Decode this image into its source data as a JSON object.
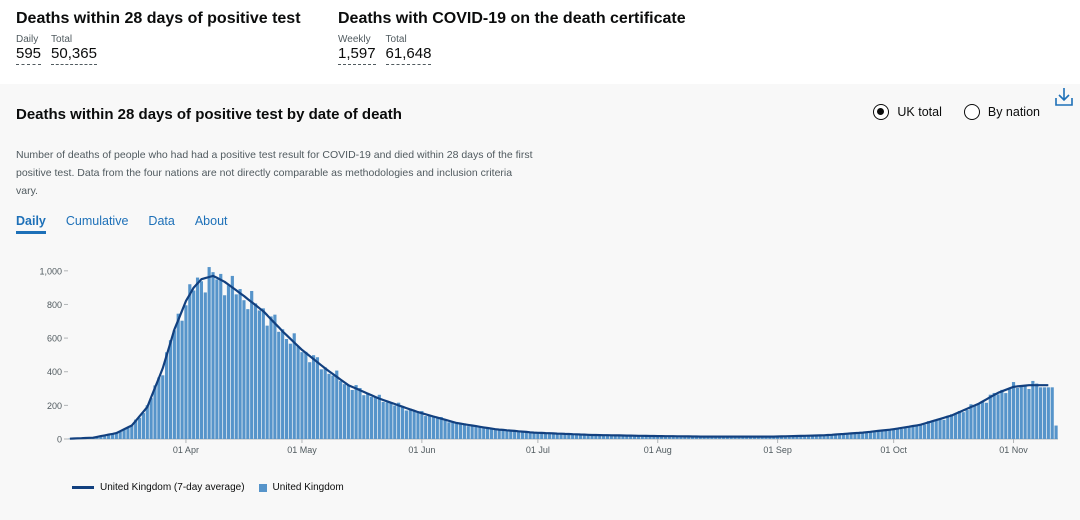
{
  "headline": {
    "block1": {
      "title": "Deaths within 28 days of positive test",
      "m1_label": "Daily",
      "m1_value": "595",
      "m2_label": "Total",
      "m2_value": "50,365"
    },
    "block2": {
      "title": "Deaths with COVID-19 on the death certificate",
      "m1_label": "Weekly",
      "m1_value": "1,597",
      "m2_label": "Total",
      "m2_value": "61,648"
    }
  },
  "card": {
    "title": "Deaths within 28 days of positive test by date of death",
    "description": "Number of deaths of people who had had a positive test result for COVID-19 and died within 28 days of the first positive test. Data from the four nations are not directly comparable as methodologies and inclusion criteria vary.",
    "radio_uk": "UK total",
    "radio_nation": "By nation",
    "tabs": [
      "Daily",
      "Cumulative",
      "Data",
      "About"
    ]
  },
  "legend": {
    "line_label": "United Kingdom (7-day average)",
    "bar_label": "United Kingdom"
  },
  "colors": {
    "bar": "#5694ca",
    "line": "#12407f",
    "link": "#1d70b8"
  },
  "chart_data": {
    "type": "bar",
    "title": "Deaths within 28 days of positive test by date of death",
    "xlabel": "",
    "ylabel": "",
    "ylim": [
      0,
      1100
    ],
    "yticks": [
      0,
      200,
      400,
      600,
      800,
      1000
    ],
    "ytick_labels": [
      "0",
      "200",
      "400",
      "600",
      "800",
      "1,000"
    ],
    "x_start": "2020-03-02",
    "x_end": "2020-11-12",
    "xticks": [
      "01 Apr",
      "01 May",
      "01 Jun",
      "01 Jul",
      "01 Aug",
      "01 Sep",
      "01 Oct",
      "01 Nov"
    ],
    "xtick_days": [
      30,
      60,
      91,
      121,
      152,
      183,
      213,
      244
    ],
    "anchors_day": [
      0,
      6,
      12,
      16,
      20,
      24,
      27,
      30,
      32,
      34,
      37,
      40,
      45,
      50,
      55,
      60,
      66,
      72,
      80,
      90,
      100,
      110,
      120,
      135,
      150,
      165,
      182,
      195,
      205,
      213,
      220,
      228,
      235,
      240,
      244,
      248,
      253,
      255
    ],
    "anchors_avg": [
      2,
      8,
      35,
      80,
      190,
      420,
      650,
      820,
      900,
      950,
      970,
      935,
      850,
      760,
      640,
      530,
      420,
      320,
      240,
      160,
      95,
      58,
      38,
      24,
      18,
      14,
      14,
      22,
      38,
      58,
      85,
      140,
      210,
      275,
      310,
      320,
      320,
      null
    ],
    "series": [
      {
        "name": "United Kingdom (7-day average)",
        "style": "line"
      },
      {
        "name": "United Kingdom",
        "style": "bar",
        "last_value": 80
      }
    ]
  }
}
